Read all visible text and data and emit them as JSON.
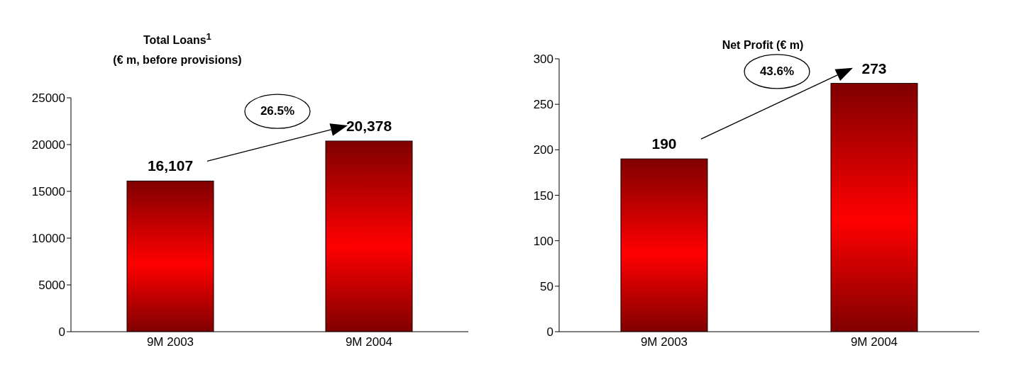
{
  "chart_data": [
    {
      "type": "bar",
      "title": "Total Loans$^{1}$",
      "subtitle": "(€ m, before provisions)",
      "categories": [
        "9M 2003",
        "9M 2004"
      ],
      "values": [
        16107,
        20378
      ],
      "value_labels": [
        "16,107",
        "20,378"
      ],
      "color": "#ff0000",
      "ylim": [
        0,
        25000
      ],
      "yticks": [
        0,
        5000,
        10000,
        15000,
        20000,
        25000
      ],
      "grid": false,
      "legend": false,
      "annotations": [
        "26.5%"
      ]
    },
    {
      "type": "bar",
      "title": "Net Profit (€ m)",
      "categories": [
        "9M 2003",
        "9M 2004"
      ],
      "values": [
        190,
        273
      ],
      "data_labels": true,
      "color": "#ff0000",
      "ylim": [
        0,
        300
      ],
      "yticks": [
        0,
        50,
        100,
        150,
        200,
        250,
        300
      ],
      "grid": false,
      "legend": false,
      "annotations": [
        "43.6%"
      ]
    }
  ]
}
